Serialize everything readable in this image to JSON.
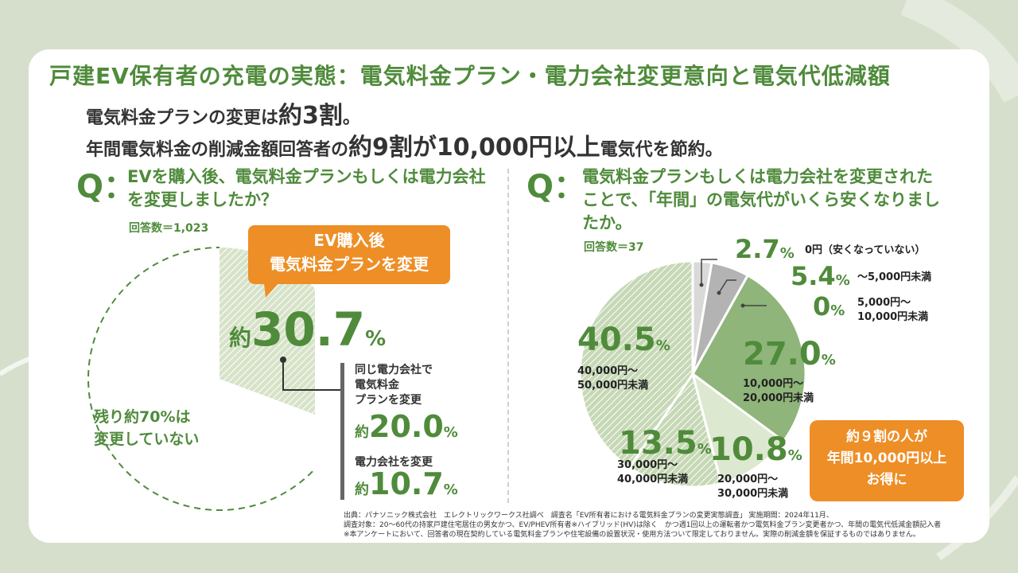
{
  "title": "戸建EV保有者の充電の実態：電気料金プラン・電力会社変更意向と電気代低減額",
  "subtitle1": {
    "pre": "電気料金プランの変更は",
    "em": "約3割",
    "post": "。"
  },
  "subtitle2": {
    "pre": "年間電気料金の削減金額回答者の",
    "em1": "約9割が",
    "em2": "10,000円以上",
    "post": "電気代を節約。"
  },
  "left": {
    "q_mark": "Q：",
    "question": "EVを購入後、電気料金プランもしくは電力会社を変更しましたか？",
    "responses": "回答数＝1,023",
    "callout": [
      "EV購入後",
      "電気料金プランを変更"
    ],
    "main_prefix": "約",
    "main_value": "30.7",
    "main_unit": "%",
    "remainder_label": [
      "残り約70%は",
      "変更していない"
    ],
    "breakdown": [
      {
        "label": [
          "同じ電力会社で",
          "電気料金",
          "プランを変更"
        ],
        "prefix": "約",
        "value": "20.0",
        "unit": "%"
      },
      {
        "label": [
          "電力会社を変更"
        ],
        "prefix": "約",
        "value": "10.7",
        "unit": "%"
      }
    ]
  },
  "right": {
    "q_mark": "Q：",
    "question": "電気料金プランもしくは電力会社を変更されたことで、「年間」の電気代がいくら安くなりましたか。",
    "responses": "回答数＝37",
    "summary_box": [
      "約９割の人が",
      "年間10,000円以上",
      "お得に"
    ]
  },
  "chart_data": [
    {
      "type": "pie",
      "title": "",
      "slices": [
        {
          "label": "EV購入後 電気料金プランを変更",
          "value": 30.7
        },
        {
          "label": "変更していない",
          "value": 69.3
        }
      ]
    },
    {
      "type": "pie",
      "title": "",
      "slices": [
        {
          "label": "0円（安くなっていない）",
          "value": 2.7,
          "display": "2.7",
          "color": "#d9d9d9"
        },
        {
          "label": "～5,000円未満",
          "value": 5.4,
          "display": "5.4",
          "color": "#b3b3b3"
        },
        {
          "label": "5,000円～ 10,000円未満",
          "value": 0.0,
          "display": "0",
          "color": "#8fb57a"
        },
        {
          "label": "10,000円～ 20,000円未満",
          "value": 27.0,
          "display": "27.0",
          "color": "#8fb57a"
        },
        {
          "label": "20,000円～ 30,000円未満",
          "value": 10.8,
          "display": "10.8",
          "color": "#c5d9b3"
        },
        {
          "label": "30,000円～ 40,000円未満",
          "value": 13.5,
          "display": "13.5",
          "color": "#a9c795"
        },
        {
          "label": "40,000円～ 50,000円未満",
          "value": 40.5,
          "display": "40.5",
          "color": "#b9cfa5"
        }
      ]
    }
  ],
  "footer": [
    "出典：パナソニック株式会社　エレクトリックワークス社調べ　調査名「EV所有者における電気料金プランの変更実態調査」 実施期間：2024年11月、",
    "調査対象：20～60代の持家戸建住宅居住の男女かつ、EV/PHEV所有者※ハイブリッド(HV)は除く　かつ週1回以上の運転者かつ電気料金プラン変更者かつ、年間の電気代低減金額記入者",
    "※本アンケートにおいて、回答者の現在契約している電気料金プランや住宅設備の設置状況・使用方法ついて限定しておりません。実際の削減金額を保証するものではありません。"
  ]
}
